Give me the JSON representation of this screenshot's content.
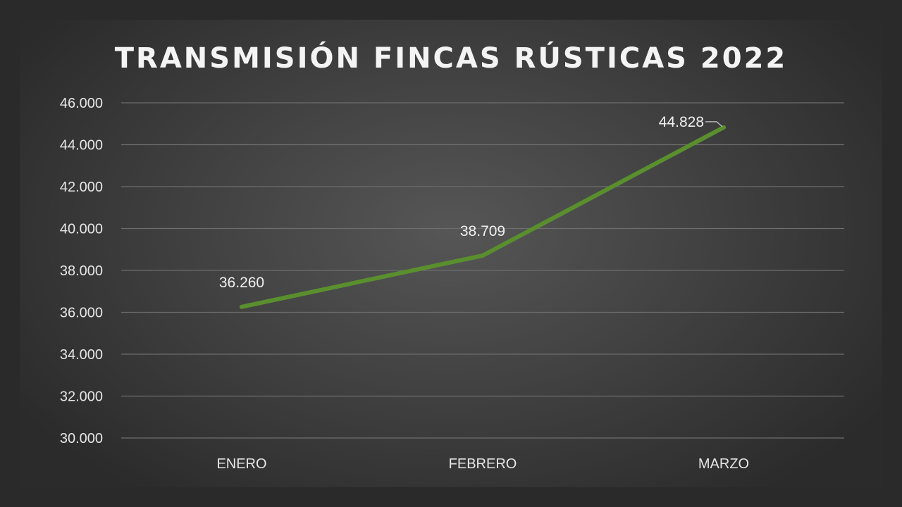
{
  "chart_data": {
    "type": "line",
    "title": "TRANSMISIÓN FINCAS RÚSTICAS 2022",
    "categories": [
      "ENERO",
      "FEBRERO",
      "MARZO"
    ],
    "series": [
      {
        "values": [
          36260,
          38709,
          44828
        ],
        "color": "#5a8f2e"
      }
    ],
    "data_labels": [
      "36.260",
      "38.709",
      "44.828"
    ],
    "y_ticks": [
      "30.000",
      "32.000",
      "34.000",
      "36.000",
      "38.000",
      "40.000",
      "42.000",
      "44.000",
      "46.000"
    ],
    "ylim": [
      30000,
      46000
    ],
    "grid": true,
    "legend": "none",
    "xlabel": "",
    "ylabel": ""
  },
  "colors": {
    "background": "#2a2a2a",
    "line": "#5a8f2e",
    "text": "#e6e6e6"
  }
}
